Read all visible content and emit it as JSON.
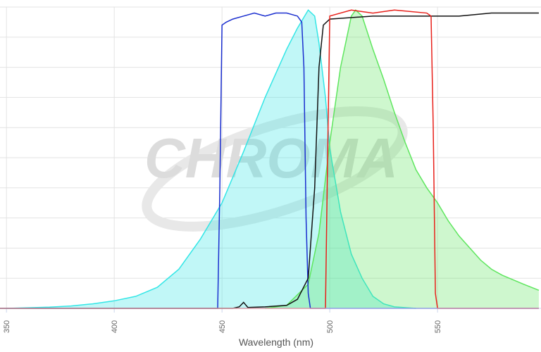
{
  "chart_data": {
    "type": "line",
    "x_label": "Wavelength (nm)",
    "watermark": "CHROMA",
    "xlim": [
      347,
      598
    ],
    "xticks": [
      350,
      400,
      450,
      500,
      550
    ],
    "ylim": [
      0,
      100
    ],
    "yticks": [
      0,
      10,
      20,
      30,
      40,
      50,
      60,
      70,
      80,
      90,
      100
    ],
    "grid": true,
    "series": [
      {
        "color": "#33e6e6",
        "fill": true,
        "x": [
          350,
          360,
          370,
          380,
          390,
          400,
          410,
          420,
          430,
          440,
          450,
          460,
          470,
          480,
          485,
          490,
          493,
          495,
          498,
          500,
          505,
          510,
          515,
          520,
          525,
          530,
          540
        ],
        "values": [
          0,
          0.2,
          0.4,
          0.8,
          1.5,
          2.5,
          4,
          7,
          13,
          23,
          35,
          52,
          70,
          86,
          93,
          99,
          97,
          88,
          70,
          53,
          32,
          18,
          10,
          4,
          1.5,
          0.5,
          0
        ]
      },
      {
        "color": "#5ee65e",
        "fill": true,
        "x": [
          470,
          480,
          490,
          495,
          500,
          505,
          510,
          512,
          515,
          520,
          525,
          530,
          535,
          540,
          545,
          550,
          555,
          560,
          565,
          570,
          575,
          580,
          590,
          597
        ],
        "values": [
          0,
          1,
          8,
          25,
          55,
          80,
          97,
          99,
          97,
          86,
          76,
          65,
          55,
          46,
          40,
          35,
          29,
          24,
          20,
          16,
          13,
          11,
          8,
          6
        ]
      },
      {
        "color": "#1a2ecf",
        "fill": false,
        "x": [
          347,
          448,
          449,
          450,
          452,
          455,
          460,
          465,
          470,
          475,
          480,
          485,
          487,
          488,
          489,
          490,
          491,
          597
        ],
        "values": [
          0,
          0,
          40,
          94,
          95,
          96,
          97,
          98,
          97,
          98,
          98,
          97,
          95,
          80,
          30,
          5,
          0,
          0
        ]
      },
      {
        "color": "#111111",
        "fill": false,
        "x": [
          347,
          455,
          458,
          460,
          462,
          470,
          480,
          485,
          490,
          493,
          495,
          497,
          500,
          520,
          540,
          560,
          575,
          590,
          597
        ],
        "values": [
          0,
          0,
          0.5,
          2,
          0.3,
          0.5,
          1,
          3,
          10,
          40,
          80,
          94,
          96,
          97,
          97,
          97,
          98,
          98,
          98
        ]
      },
      {
        "color": "#e8201a",
        "fill": false,
        "x": [
          347,
          498,
          499,
          500,
          510,
          520,
          530,
          545,
          547,
          548,
          549,
          550,
          597
        ],
        "values": [
          0,
          0,
          50,
          97,
          99,
          98,
          99,
          98,
          97,
          60,
          5,
          0,
          0
        ]
      }
    ]
  }
}
